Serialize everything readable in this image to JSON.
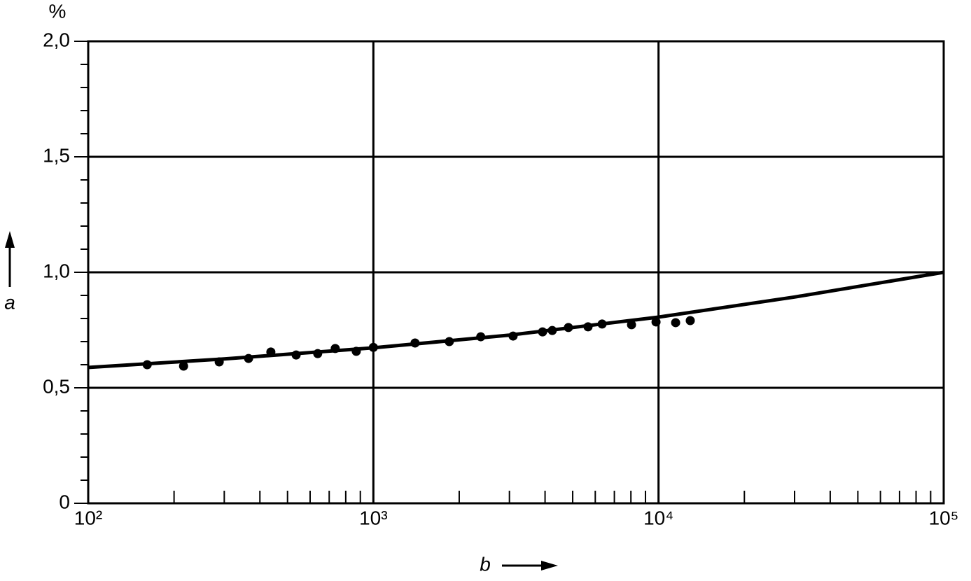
{
  "chart_data": {
    "type": "scatter",
    "y_unit": "%",
    "ylabel": "a",
    "xlabel": "b",
    "xscale": "log",
    "grid": true,
    "xlim": [
      100,
      100000
    ],
    "xticks": [
      {
        "value": 100,
        "label": "10²"
      },
      {
        "value": 1000,
        "label": "10³"
      },
      {
        "value": 10000,
        "label": "10⁴"
      },
      {
        "value": 100000,
        "label": "10⁵"
      }
    ],
    "minor_xticks": [
      200,
      300,
      400,
      500,
      600,
      700,
      800,
      900,
      2000,
      3000,
      4000,
      5000,
      6000,
      7000,
      8000,
      9000,
      20000,
      30000,
      40000,
      50000,
      60000,
      70000,
      80000,
      90000
    ],
    "ylim": [
      0,
      2
    ],
    "yticks": [
      0,
      {
        "value": 0.5,
        "label": "0,5"
      },
      {
        "value": 1,
        "label": "1,0"
      },
      {
        "value": 1.5,
        "label": "1,5"
      },
      {
        "value": 2,
        "label": "2,0"
      }
    ],
    "minor_yticks": [
      0.1,
      0.2,
      0.3,
      0.4,
      0.6,
      0.7,
      0.8,
      0.9,
      1.1,
      1.2,
      1.3,
      1.4,
      1.6,
      1.7,
      1.8,
      1.9
    ],
    "series": [
      {
        "type": "scatter",
        "color": "#000000",
        "x": [
          161,
          216,
          288,
          365,
          437,
          536,
          638,
          735,
          871,
          1000,
          1400,
          1846,
          2380,
          3090,
          3920,
          4240,
          4830,
          5660,
          6340,
          8040,
          9800,
          11480,
          12920
        ],
        "values": [
          0.6,
          0.594,
          0.612,
          0.627,
          0.655,
          0.642,
          0.648,
          0.67,
          0.658,
          0.675,
          0.694,
          0.7,
          0.721,
          0.724,
          0.742,
          0.748,
          0.761,
          0.764,
          0.776,
          0.773,
          0.785,
          0.782,
          0.791
        ]
      },
      {
        "type": "line",
        "color": "#000000",
        "x": [
          100,
          300,
          1000,
          3000,
          10000,
          30000,
          100000
        ],
        "values": [
          0.588,
          0.625,
          0.673,
          0.728,
          0.806,
          0.893,
          1.0
        ]
      }
    ]
  }
}
